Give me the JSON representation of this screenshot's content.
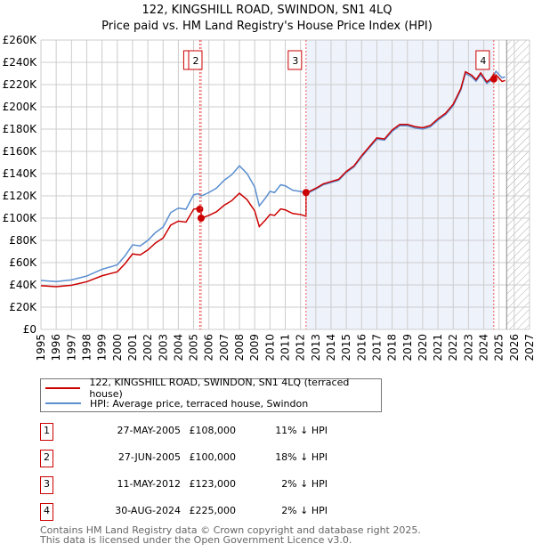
{
  "title": "122, KINGSHILL ROAD, SWINDON, SN1 4LQ",
  "subtitle": "Price paid vs. HM Land Registry's House Price Index (HPI)",
  "colors": {
    "property": "#cc0000",
    "hpi": "#5b8fd0",
    "shade": "#eef2fb",
    "grid": "#cccccc"
  },
  "chart_data": {
    "type": "line",
    "title": "122, KINGSHILL ROAD, SWINDON, SN1 4LQ",
    "xlim": [
      1995,
      2027
    ],
    "ylim": [
      0,
      260000
    ],
    "x_ticks": [
      "1995",
      "1996",
      "1997",
      "1998",
      "1999",
      "2000",
      "2001",
      "2002",
      "2003",
      "2004",
      "2005",
      "2006",
      "2007",
      "2008",
      "2009",
      "2010",
      "2011",
      "2012",
      "2013",
      "2014",
      "2015",
      "2016",
      "2017",
      "2018",
      "2019",
      "2020",
      "2021",
      "2022",
      "2023",
      "2024",
      "2025",
      "2026",
      "2027"
    ],
    "y_ticks": [
      "£0",
      "£20K",
      "£40K",
      "£60K",
      "£80K",
      "£100K",
      "£120K",
      "£140K",
      "£160K",
      "£180K",
      "£200K",
      "£220K",
      "£240K",
      "£260K"
    ],
    "series": [
      {
        "name": "HPI: Average price, terraced house, Swindon",
        "color": "#5b8fd0",
        "x": [
          1995,
          1996,
          1997,
          1998,
          1999,
          2000,
          2000.5,
          2001,
          2001.5,
          2002,
          2002.5,
          2003,
          2003.5,
          2004,
          2004.5,
          2005,
          2005.3,
          2005.5,
          2006,
          2006.5,
          2007,
          2007.5,
          2008,
          2008.5,
          2009,
          2009.3,
          2009.7,
          2010,
          2010.3,
          2010.7,
          2011,
          2011.5,
          2012,
          2012.4,
          2013,
          2013.5,
          2014,
          2014.5,
          2015,
          2015.5,
          2016,
          2016.5,
          2017,
          2017.5,
          2018,
          2018.5,
          2019,
          2019.5,
          2020,
          2020.5,
          2021,
          2021.5,
          2022,
          2022.5,
          2022.8,
          2023.2,
          2023.5,
          2023.8,
          2024.2,
          2024.5,
          2024.8,
          2025.2,
          2025.4
        ],
        "y": [
          44000,
          43000,
          44500,
          48000,
          54000,
          58000,
          66000,
          76000,
          75000,
          80000,
          87000,
          92000,
          105000,
          109000,
          108000,
          121000,
          122000,
          120000,
          123000,
          127000,
          134000,
          139000,
          147000,
          140000,
          128000,
          111000,
          118000,
          124000,
          123000,
          130000,
          129000,
          125000,
          124000,
          122000,
          126000,
          130000,
          132000,
          134000,
          141000,
          146000,
          155000,
          163000,
          171000,
          170000,
          178000,
          183000,
          183000,
          181000,
          180000,
          182000,
          188000,
          193000,
          201000,
          215000,
          230000,
          227000,
          223000,
          229000,
          221000,
          224000,
          232000,
          226000,
          227000
        ]
      },
      {
        "name": "122, KINGSHILL ROAD, SWINDON, SN1 4LQ (terraced house)",
        "color": "#cc0000",
        "derived_from_sales": true
      }
    ],
    "sales": [
      {
        "id": "1",
        "date": "27-MAY-2005",
        "x": 2005.4,
        "price": 108000
      },
      {
        "id": "2",
        "date": "27-JUN-2005",
        "x": 2005.49,
        "price": 100000
      },
      {
        "id": "3",
        "date": "11-MAY-2012",
        "x": 2012.36,
        "price": 123000
      },
      {
        "id": "4",
        "date": "30-AUG-2024",
        "x": 2024.66,
        "price": 225000
      }
    ],
    "shaded_range": [
      2012.36,
      2024.66
    ],
    "forecast_hatch_from": 2025.5
  },
  "legend": {
    "property": "122, KINGSHILL ROAD, SWINDON, SN1 4LQ (terraced house)",
    "hpi": "HPI: Average price, terraced house, Swindon"
  },
  "table": [
    {
      "num": "1",
      "date": "27-MAY-2005",
      "price": "£108,000",
      "hpi": "11% ↓ HPI"
    },
    {
      "num": "2",
      "date": "27-JUN-2005",
      "price": "£100,000",
      "hpi": "18% ↓ HPI"
    },
    {
      "num": "3",
      "date": "11-MAY-2012",
      "price": "£123,000",
      "hpi": "2% ↓ HPI"
    },
    {
      "num": "4",
      "date": "30-AUG-2024",
      "price": "£225,000",
      "hpi": "2% ↓ HPI"
    }
  ],
  "footer": {
    "line1": "Contains HM Land Registry data © Crown copyright and database right 2025.",
    "line2": "This data is licensed under the Open Government Licence v3.0."
  }
}
